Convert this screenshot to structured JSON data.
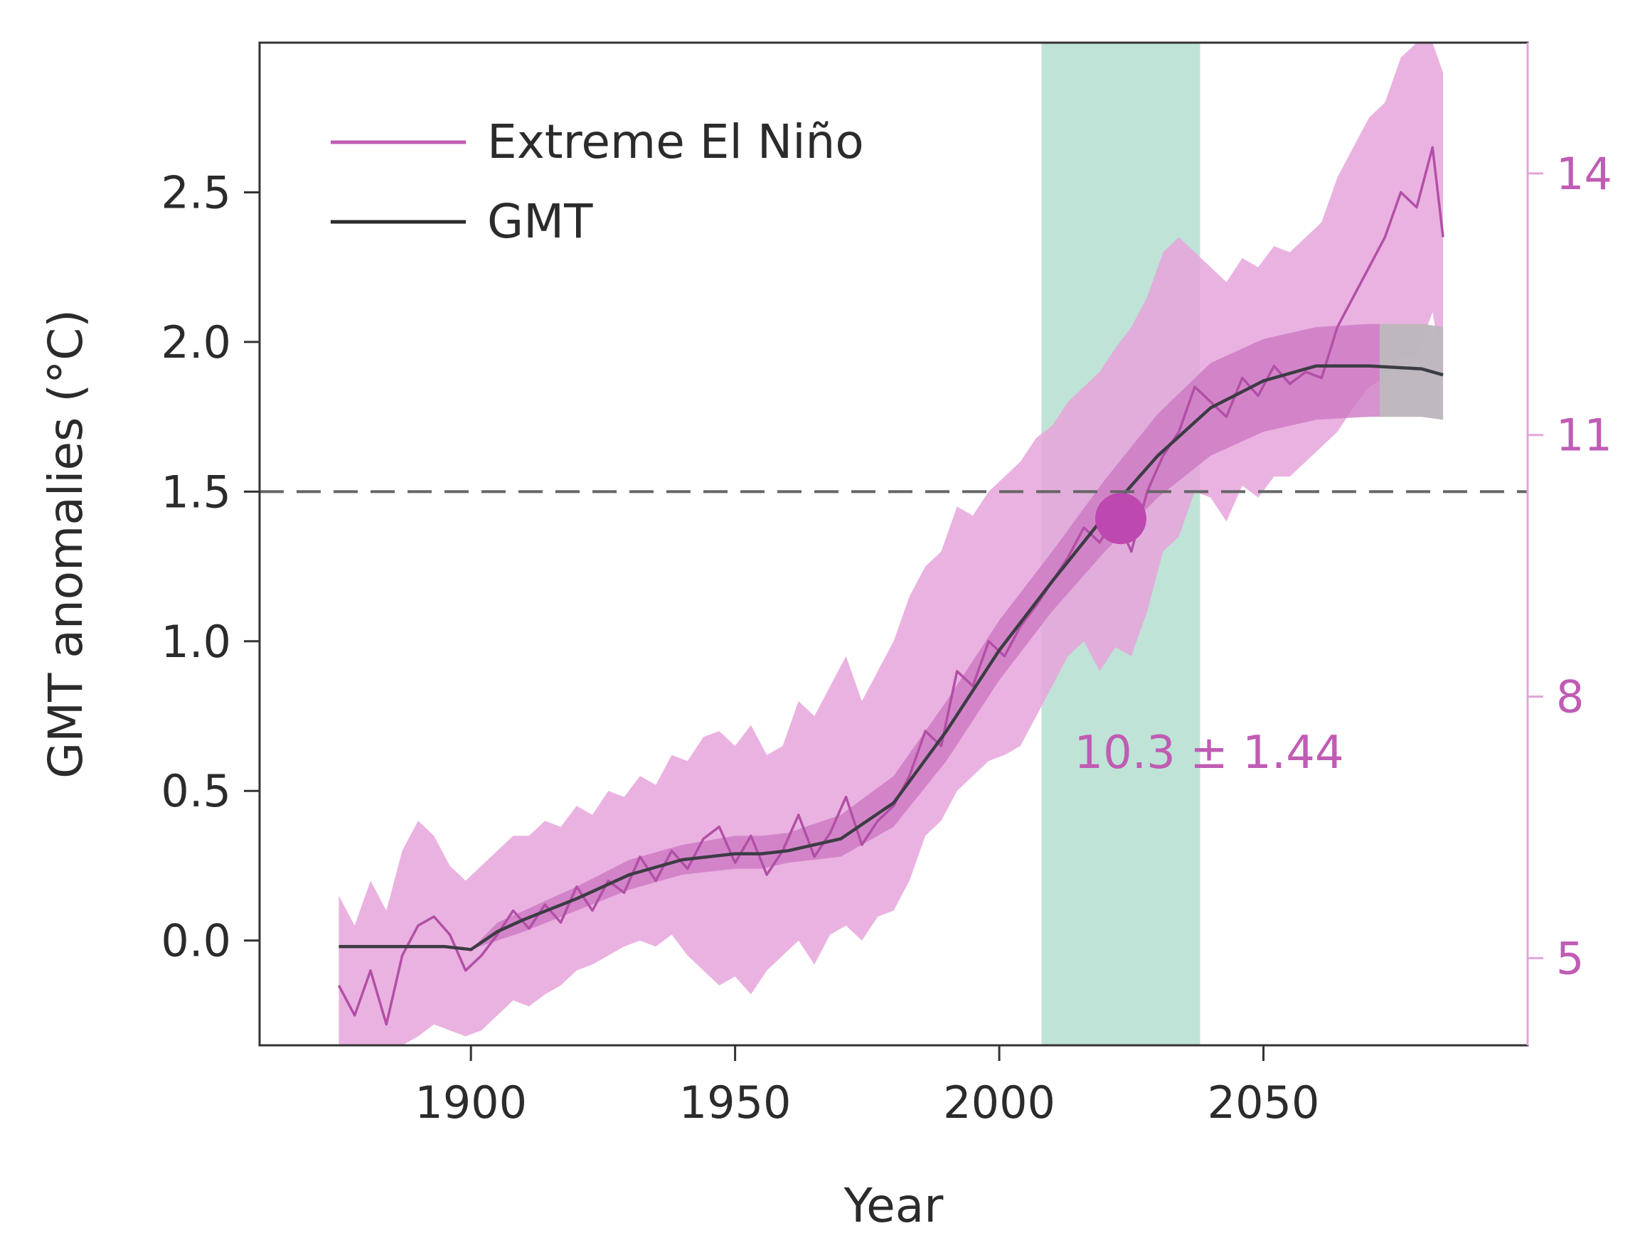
{
  "chart_data": {
    "type": "line",
    "title": "",
    "xlabel": "Year",
    "ylabel": "GMT anomalies (°C)",
    "xlim": [
      1860,
      2100
    ],
    "ylim": [
      -0.35,
      3.0
    ],
    "y2lim": [
      4.0,
      15.5
    ],
    "x_ticks": [
      1900,
      1950,
      2000,
      2050
    ],
    "y_ticks": [
      "0.0",
      "0.5",
      "1.0",
      "1.5",
      "2.0",
      "2.5"
    ],
    "y2_ticks": [
      "5",
      "8",
      "11",
      "14"
    ],
    "threshold": {
      "y": 1.5,
      "style": "dashed"
    },
    "highlight_band": {
      "x_start": 2008,
      "x_end": 2038,
      "color": "#bfe3d6"
    },
    "marker": {
      "x": 2023,
      "y": 1.41
    },
    "annotation": "10.3 ± 1.44",
    "legend": [
      {
        "label": "Extreme El Niño",
        "color": "#c05cb4"
      },
      {
        "label": "GMT",
        "color": "#2b2b2b"
      }
    ],
    "colors": {
      "enso_line": "#b24fa6",
      "enso_outer_band": "#e6a4dc",
      "enso_inner_band": "#cd78c3",
      "gmt_line": "#3c3c44",
      "gmt_band_end": "#bdbdbd",
      "threshold": "#666666"
    },
    "series": [
      {
        "name": "GMT",
        "x": [
          1875,
          1885,
          1895,
          1900,
          1905,
          1910,
          1920,
          1930,
          1940,
          1950,
          1955,
          1960,
          1970,
          1980,
          1990,
          2000,
          2010,
          2020,
          2030,
          2040,
          2050,
          2060,
          2070,
          2080,
          2084
        ],
        "y": [
          -0.02,
          -0.02,
          -0.02,
          -0.03,
          0.03,
          0.07,
          0.14,
          0.22,
          0.27,
          0.29,
          0.29,
          0.3,
          0.34,
          0.46,
          0.7,
          0.97,
          1.2,
          1.42,
          1.62,
          1.78,
          1.87,
          1.92,
          1.92,
          1.91,
          1.89
        ],
        "band_lower": [
          -0.02,
          -0.02,
          -0.02,
          -0.03,
          0.0,
          0.03,
          0.1,
          0.17,
          0.22,
          0.24,
          0.24,
          0.26,
          0.28,
          0.38,
          0.6,
          0.87,
          1.1,
          1.3,
          1.48,
          1.62,
          1.7,
          1.74,
          1.75,
          1.75,
          1.74
        ],
        "band_upper": [
          -0.02,
          -0.02,
          -0.02,
          -0.03,
          0.06,
          0.1,
          0.18,
          0.27,
          0.32,
          0.35,
          0.35,
          0.36,
          0.42,
          0.55,
          0.8,
          1.07,
          1.3,
          1.54,
          1.76,
          1.93,
          2.01,
          2.05,
          2.06,
          2.06,
          2.05
        ]
      },
      {
        "name": "Extreme El Niño",
        "x": [
          1875,
          1878,
          1881,
          1884,
          1887,
          1890,
          1893,
          1896,
          1899,
          1902,
          1905,
          1908,
          1911,
          1914,
          1917,
          1920,
          1923,
          1926,
          1929,
          1932,
          1935,
          1938,
          1941,
          1944,
          1947,
          1950,
          1953,
          1956,
          1959,
          1962,
          1965,
          1968,
          1971,
          1974,
          1977,
          1980,
          1983,
          1986,
          1989,
          1992,
          1995,
          1998,
          2001,
          2004,
          2007,
          2010,
          2013,
          2016,
          2019,
          2022,
          2025,
          2028,
          2031,
          2034,
          2037,
          2040,
          2043,
          2046,
          2049,
          2052,
          2055,
          2058,
          2061,
          2064,
          2067,
          2070,
          2073,
          2076,
          2079,
          2082,
          2084
        ],
        "y": [
          -0.15,
          -0.25,
          -0.1,
          -0.28,
          -0.05,
          0.05,
          0.08,
          0.02,
          -0.1,
          -0.05,
          0.02,
          0.1,
          0.04,
          0.12,
          0.06,
          0.18,
          0.1,
          0.2,
          0.16,
          0.28,
          0.2,
          0.3,
          0.24,
          0.34,
          0.38,
          0.26,
          0.35,
          0.22,
          0.3,
          0.42,
          0.28,
          0.36,
          0.48,
          0.32,
          0.4,
          0.45,
          0.55,
          0.7,
          0.65,
          0.9,
          0.85,
          1.0,
          0.95,
          1.05,
          1.12,
          1.2,
          1.28,
          1.38,
          1.33,
          1.42,
          1.3,
          1.5,
          1.62,
          1.7,
          1.85,
          1.8,
          1.75,
          1.88,
          1.82,
          1.92,
          1.86,
          1.9,
          1.88,
          2.05,
          2.15,
          2.25,
          2.35,
          2.5,
          2.45,
          2.65,
          2.35
        ],
        "band_lower": [
          -0.35,
          -0.35,
          -0.35,
          -0.35,
          -0.35,
          -0.32,
          -0.28,
          -0.3,
          -0.32,
          -0.3,
          -0.25,
          -0.2,
          -0.22,
          -0.18,
          -0.15,
          -0.1,
          -0.08,
          -0.05,
          -0.02,
          0.0,
          -0.02,
          0.02,
          -0.05,
          -0.1,
          -0.15,
          -0.12,
          -0.18,
          -0.1,
          -0.05,
          0.0,
          -0.08,
          0.02,
          0.05,
          0.0,
          0.08,
          0.1,
          0.2,
          0.35,
          0.4,
          0.5,
          0.55,
          0.6,
          0.62,
          0.65,
          0.75,
          0.85,
          0.95,
          1.0,
          0.9,
          0.98,
          0.95,
          1.1,
          1.3,
          1.35,
          1.5,
          1.48,
          1.4,
          1.52,
          1.48,
          1.55,
          1.55,
          1.6,
          1.65,
          1.7,
          1.78,
          1.85,
          1.88,
          1.95,
          1.95,
          2.1,
          1.9
        ],
        "band_upper": [
          0.15,
          0.05,
          0.2,
          0.1,
          0.3,
          0.4,
          0.35,
          0.25,
          0.2,
          0.25,
          0.3,
          0.35,
          0.35,
          0.4,
          0.38,
          0.45,
          0.42,
          0.5,
          0.48,
          0.55,
          0.52,
          0.62,
          0.6,
          0.68,
          0.7,
          0.65,
          0.72,
          0.62,
          0.65,
          0.8,
          0.75,
          0.85,
          0.95,
          0.8,
          0.9,
          1.0,
          1.15,
          1.25,
          1.3,
          1.45,
          1.42,
          1.5,
          1.55,
          1.6,
          1.68,
          1.72,
          1.8,
          1.85,
          1.9,
          1.98,
          2.05,
          2.15,
          2.3,
          2.35,
          2.3,
          2.25,
          2.2,
          2.28,
          2.25,
          2.32,
          2.3,
          2.35,
          2.4,
          2.55,
          2.65,
          2.75,
          2.8,
          2.95,
          3.0,
          3.0,
          2.9
        ]
      }
    ]
  }
}
